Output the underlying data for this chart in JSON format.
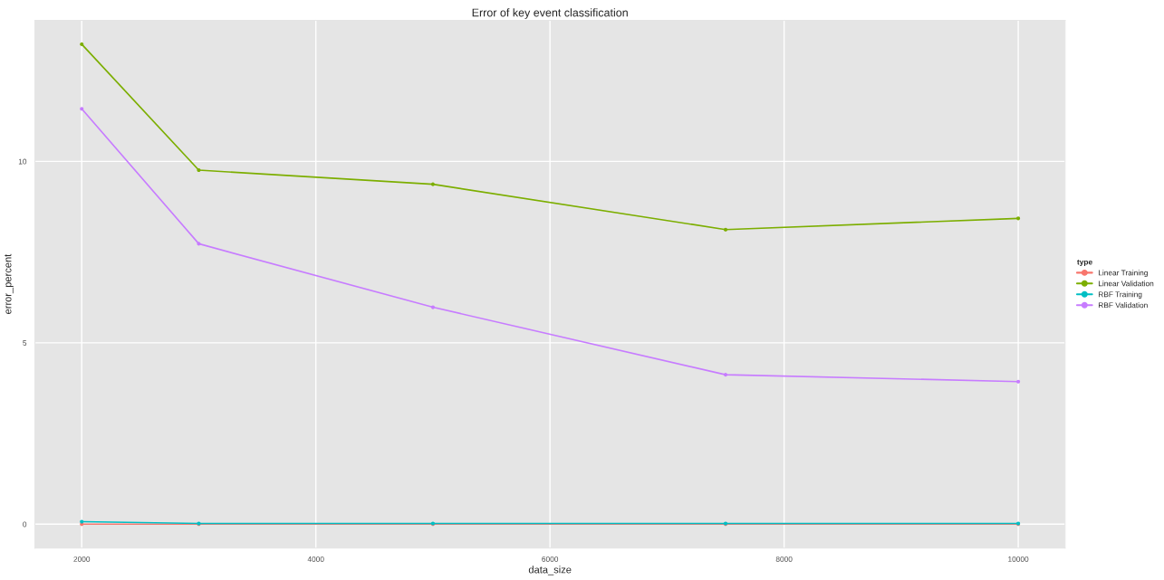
{
  "chart_data": {
    "type": "line",
    "title": "Error of key event classification",
    "xlabel": "data_size",
    "ylabel": "error_percent",
    "legend_title": "type",
    "x": [
      2000,
      3000,
      5000,
      7500,
      10000
    ],
    "series": [
      {
        "name": "Linear Training",
        "color": "#f8766d",
        "values": [
          0,
          0,
          0,
          0,
          0
        ]
      },
      {
        "name": "Linear Validation",
        "color": "#7cae00",
        "values": [
          13.23,
          9.76,
          9.37,
          8.12,
          8.43
        ]
      },
      {
        "name": "RBF Training",
        "color": "#00bfc4",
        "values": [
          0.07,
          0.02,
          0.02,
          0.02,
          0.02
        ]
      },
      {
        "name": "RBF Validation",
        "color": "#c77cff",
        "values": [
          11.45,
          7.73,
          5.98,
          4.12,
          3.93
        ]
      }
    ],
    "xlim": [
      1600,
      10400
    ],
    "ylim": [
      -0.66,
      13.89
    ],
    "xticks": [
      2000,
      4000,
      6000,
      8000,
      10000
    ],
    "yticks": [
      0,
      5,
      10
    ],
    "grid": true,
    "legend": "right",
    "marker": "circle",
    "line_style": "solid"
  }
}
